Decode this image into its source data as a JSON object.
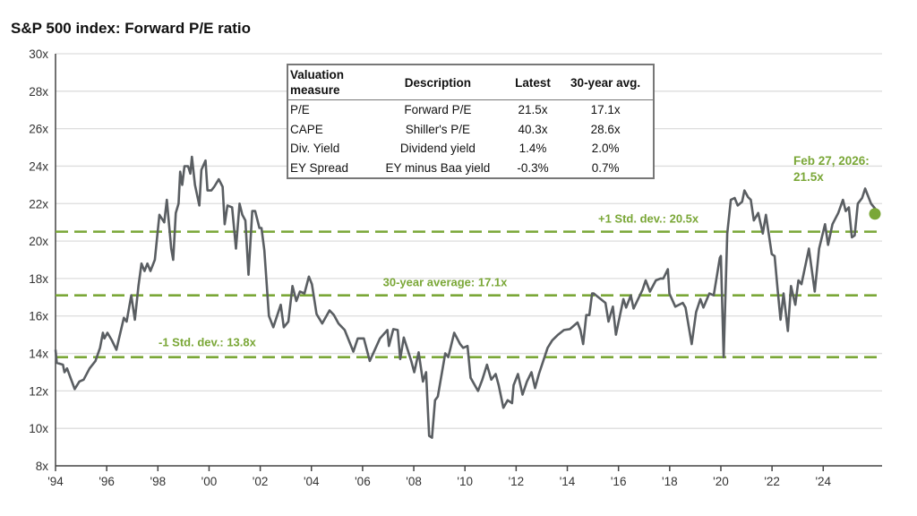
{
  "chart_data": {
    "type": "line",
    "title": "S&P 500 index: Forward P/E ratio",
    "xlim": [
      1994,
      2026.3
    ],
    "ylim": [
      8,
      30
    ],
    "yticks": [
      8,
      10,
      12,
      14,
      16,
      18,
      20,
      22,
      24,
      26,
      28,
      30
    ],
    "ytick_labels": [
      "8x",
      "10x",
      "12x",
      "14x",
      "16x",
      "18x",
      "20x",
      "22x",
      "24x",
      "26x",
      "28x",
      "30x"
    ],
    "xticks": [
      1994,
      1996,
      1998,
      2000,
      2002,
      2004,
      2006,
      2008,
      2010,
      2012,
      2014,
      2016,
      2018,
      2020,
      2022,
      2024
    ],
    "xtick_labels": [
      "'94",
      "'96",
      "'98",
      "'00",
      "'02",
      "'04",
      "'06",
      "'08",
      "'10",
      "'12",
      "'14",
      "'16",
      "'18",
      "'20",
      "'22",
      "'24"
    ],
    "grid": "horizontal",
    "colors": {
      "line": "#5a5e62",
      "accent": "#7aa737",
      "grid": "#dddddd",
      "axis": "#444444"
    },
    "series": [
      {
        "x": [
          1994.0,
          1994.05,
          1994.29,
          1994.35,
          1994.45,
          1994.75,
          1994.93,
          1995.1,
          1995.33,
          1995.56,
          1995.74,
          1995.85,
          1995.91,
          1996.03,
          1996.2,
          1996.38,
          1996.5,
          1996.67,
          1996.78,
          1996.96,
          1997.1,
          1997.24,
          1997.36,
          1997.48,
          1997.59,
          1997.71,
          1997.88,
          1998.06,
          1998.25,
          1998.35,
          1998.52,
          1998.6,
          1998.7,
          1998.81,
          1998.87,
          1998.95,
          1999.04,
          1999.18,
          1999.27,
          1999.33,
          1999.45,
          1999.62,
          1999.7,
          1999.86,
          1999.94,
          2000.09,
          2000.2,
          2000.38,
          2000.53,
          2000.61,
          2000.72,
          2000.9,
          2001.05,
          2001.19,
          2001.3,
          2001.42,
          2001.54,
          2001.69,
          2001.8,
          2001.97,
          2002.05,
          2002.16,
          2002.34,
          2002.51,
          2002.8,
          2002.92,
          2003.1,
          2003.26,
          2003.41,
          2003.55,
          2003.73,
          2003.9,
          2004.02,
          2004.2,
          2004.42,
          2004.71,
          2004.88,
          2005.06,
          2005.3,
          2005.64,
          2005.81,
          2006.05,
          2006.28,
          2006.68,
          2006.97,
          2007.03,
          2007.2,
          2007.37,
          2007.47,
          2007.61,
          2007.9,
          2008.02,
          2008.19,
          2008.36,
          2008.48,
          2008.6,
          2008.71,
          2008.83,
          2008.94,
          2009.23,
          2009.35,
          2009.58,
          2009.81,
          2009.93,
          2010.1,
          2010.22,
          2010.51,
          2010.68,
          2010.86,
          2011.03,
          2011.2,
          2011.32,
          2011.5,
          2011.67,
          2011.84,
          2011.9,
          2012.07,
          2012.25,
          2012.42,
          2012.6,
          2012.74,
          2012.89,
          2013.23,
          2013.41,
          2013.64,
          2013.87,
          2014.1,
          2014.4,
          2014.51,
          2014.62,
          2014.74,
          2014.86,
          2014.97,
          2015.03,
          2015.49,
          2015.61,
          2015.78,
          2015.9,
          2016.19,
          2016.3,
          2016.48,
          2016.59,
          2016.94,
          2017.06,
          2017.23,
          2017.46,
          2017.64,
          2017.75,
          2017.93,
          2017.99,
          2018.22,
          2018.51,
          2018.62,
          2018.86,
          2019.03,
          2019.2,
          2019.32,
          2019.55,
          2019.72,
          2019.96,
          2020.0,
          2020.11,
          2020.25,
          2020.39,
          2020.54,
          2020.66,
          2020.83,
          2020.92,
          2021.06,
          2021.17,
          2021.29,
          2021.46,
          2021.64,
          2021.76,
          2021.99,
          2022.1,
          2022.22,
          2022.33,
          2022.45,
          2022.62,
          2022.74,
          2022.91,
          2023.03,
          2023.15,
          2023.44,
          2023.67,
          2023.84,
          2024.07,
          2024.19,
          2024.36,
          2024.59,
          2024.77,
          2024.88,
          2025.0,
          2025.12,
          2025.23,
          2025.35,
          2025.52,
          2025.64,
          2025.87,
          2025.99,
          2026.16
        ],
        "y": [
          14.2,
          13.5,
          13.4,
          13.0,
          13.2,
          12.1,
          12.5,
          12.6,
          13.2,
          13.6,
          14.3,
          15.1,
          14.8,
          15.1,
          14.7,
          14.2,
          14.9,
          15.9,
          15.7,
          17.1,
          15.8,
          17.6,
          18.8,
          18.4,
          18.8,
          18.4,
          19.0,
          21.4,
          21.0,
          22.2,
          19.6,
          19.0,
          21.5,
          22.0,
          23.7,
          23.0,
          24.0,
          24.0,
          23.6,
          24.5,
          23.0,
          21.9,
          23.8,
          24.3,
          22.7,
          22.7,
          22.9,
          23.3,
          22.9,
          20.9,
          21.9,
          21.8,
          19.6,
          22.0,
          21.4,
          21.1,
          18.2,
          21.6,
          21.6,
          20.7,
          20.7,
          19.5,
          16.0,
          15.4,
          16.6,
          15.4,
          15.7,
          17.6,
          16.8,
          17.3,
          17.2,
          18.1,
          17.7,
          16.1,
          15.6,
          16.3,
          16.05,
          15.6,
          15.25,
          14.1,
          14.8,
          14.8,
          13.6,
          14.8,
          15.25,
          14.4,
          15.3,
          15.25,
          13.7,
          14.85,
          13.6,
          13.0,
          14.06,
          12.5,
          13.0,
          9.6,
          9.5,
          11.5,
          11.7,
          14.0,
          13.8,
          15.1,
          14.5,
          14.3,
          14.4,
          12.7,
          12.0,
          12.6,
          13.4,
          12.6,
          12.9,
          12.3,
          11.1,
          11.5,
          11.35,
          12.3,
          12.9,
          11.8,
          12.5,
          13.0,
          12.15,
          12.9,
          14.3,
          14.7,
          15.0,
          15.25,
          15.3,
          15.65,
          15.25,
          14.5,
          16.05,
          16.05,
          17.2,
          17.2,
          16.7,
          15.7,
          16.5,
          15.0,
          16.9,
          16.45,
          17.1,
          16.4,
          17.4,
          17.9,
          17.3,
          17.9,
          18.0,
          18.0,
          18.5,
          17.2,
          16.5,
          16.7,
          16.45,
          14.5,
          16.2,
          16.9,
          16.45,
          17.2,
          17.1,
          19.1,
          19.2,
          13.8,
          20.4,
          22.2,
          22.3,
          21.9,
          22.1,
          22.7,
          22.35,
          22.2,
          21.1,
          21.5,
          20.4,
          21.4,
          19.3,
          19.2,
          17.4,
          15.8,
          17.2,
          15.2,
          17.6,
          16.6,
          17.9,
          17.7,
          19.6,
          17.3,
          19.6,
          20.9,
          19.8,
          20.9,
          21.5,
          22.2,
          21.6,
          21.8,
          20.2,
          20.3,
          22.0,
          22.3,
          22.8,
          22.0,
          21.8,
          21.5
        ]
      }
    ],
    "reference_lines": [
      {
        "value": 20.5,
        "label": "+1 Std. dev.: 20.5x"
      },
      {
        "value": 17.1,
        "label": "30-year average: 17.1x"
      },
      {
        "value": 13.8,
        "label": "-1 Std. dev.: 13.8x"
      }
    ],
    "annotation": {
      "line1": "Feb 27, 2026:",
      "line2": "21.5x",
      "x": 2026.16,
      "y": 21.5
    }
  },
  "table": {
    "headers": [
      "Valuation measure",
      "Description",
      "Latest",
      "30-year avg."
    ],
    "header_line1": "Valuation",
    "header_line2": "measure",
    "rows": [
      [
        "P/E",
        "Forward P/E",
        "21.5x",
        "17.1x"
      ],
      [
        "CAPE",
        "Shiller's P/E",
        "40.3x",
        "28.6x"
      ],
      [
        "Div. Yield",
        "Dividend yield",
        "1.4%",
        "2.0%"
      ],
      [
        "EY Spread",
        "EY minus Baa yield",
        "-0.3%",
        "0.7%"
      ]
    ]
  }
}
